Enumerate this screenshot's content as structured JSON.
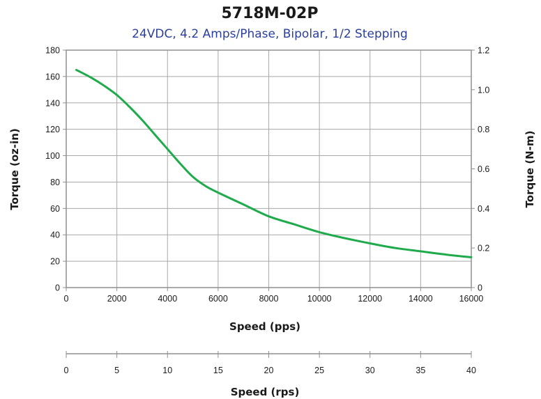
{
  "colors": {
    "curve": "#1faa4b",
    "subtitle": "#2a3f9c",
    "grid": "#a8a8a8",
    "frame": "#8f8f8f",
    "text": "#1a1a1a"
  },
  "chart_data": {
    "type": "line",
    "title": "5718M-02P",
    "subtitle": "24VDC, 4.2 Amps/Phase, Bipolar, 1/2 Stepping",
    "xlabel": "Speed (pps)",
    "x2label": "Speed (rps)",
    "ylabel": "Torque (oz-in)",
    "y2label": "Torque (N-m)",
    "xlim": [
      0,
      16000
    ],
    "ylim": [
      0,
      180
    ],
    "x2lim": [
      0,
      40
    ],
    "y2lim": [
      0,
      1.2
    ],
    "x_ticks": [
      "0",
      "2000",
      "4000",
      "6000",
      "8000",
      "10000",
      "12000",
      "14000",
      "16000"
    ],
    "y_ticks": [
      "0",
      "20",
      "40",
      "60",
      "80",
      "100",
      "120",
      "140",
      "160",
      "180"
    ],
    "y2_ticks": [
      "0",
      "0.2",
      "0.4",
      "0.6",
      "0.8",
      "1.0",
      "1.2"
    ],
    "x2_ticks": [
      "0",
      "5",
      "10",
      "15",
      "20",
      "25",
      "30",
      "35",
      "40"
    ],
    "grid": true,
    "series": [
      {
        "x": [
          400,
          1000,
          1500,
          2000,
          2500,
          3000,
          3500,
          4000,
          4500,
          5000,
          5500,
          6000,
          7000,
          8000,
          9000,
          10000,
          11000,
          12000,
          13000,
          14000,
          15000,
          16000
        ],
        "y": [
          165,
          159,
          153,
          146,
          137,
          127,
          116,
          105,
          94,
          84,
          77,
          72,
          63,
          54,
          48,
          42,
          37.5,
          33.5,
          30,
          27.5,
          25,
          23
        ]
      }
    ]
  }
}
